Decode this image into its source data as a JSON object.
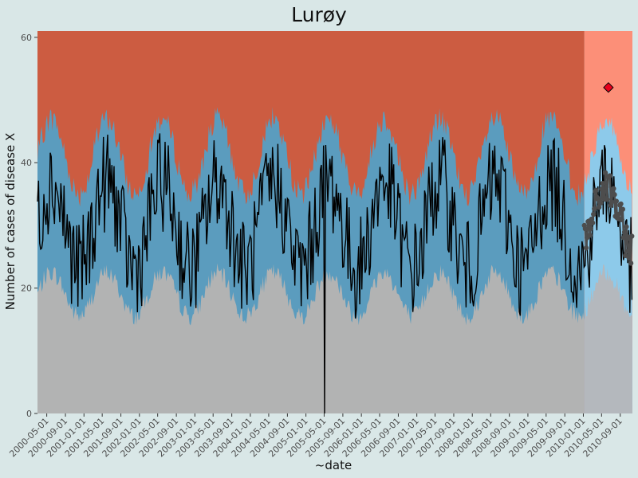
{
  "title": "Lurøy",
  "chart_data": {
    "type": "area",
    "title": "Lurøy",
    "xlabel": "~date",
    "ylabel": "Number of cases of disease X",
    "xlim": [
      "2000-03-01",
      "2010-11-20"
    ],
    "ylim": [
      0,
      61
    ],
    "yticks": [
      0,
      20,
      40,
      60
    ],
    "xticks": [
      "2000-05-01",
      "2000-09-01",
      "2001-01-01",
      "2001-05-01",
      "2001-09-01",
      "2002-01-01",
      "2002-05-01",
      "2002-09-01",
      "2003-01-01",
      "2003-05-01",
      "2003-09-01",
      "2004-01-01",
      "2004-05-01",
      "2004-09-01",
      "2005-01-01",
      "2005-05-01",
      "2005-09-01",
      "2006-01-01",
      "2006-05-01",
      "2006-09-01",
      "2007-01-01",
      "2007-05-01",
      "2007-09-01",
      "2008-01-01",
      "2008-05-01",
      "2008-09-01",
      "2009-01-01",
      "2009-05-01",
      "2009-09-01",
      "2010-01-01",
      "2010-05-01",
      "2010-09-01"
    ],
    "grid": false,
    "legend": "none",
    "regions": [
      {
        "x_start": "2000-03-01",
        "x_end": "2010-01-08"
      },
      {
        "x_start": "2010-01-08",
        "x_end": "2010-11-20"
      }
    ],
    "bands": {
      "lower_base_mean": 19,
      "lower_amplitude": 3.5,
      "upper_base_mean": 41,
      "upper_amplitude": 6,
      "season_peak_month": 5
    },
    "series": [
      {
        "name": "",
        "kind": "line",
        "mean": 30,
        "amplitude": 7
      },
      {
        "name": "",
        "kind": "points",
        "mean": 31,
        "amplitude": 5
      }
    ],
    "notable_points": [
      {
        "date": "2005-05-01",
        "value": 0
      },
      {
        "date": "2010-06-15",
        "value": 52,
        "marker": "diamond"
      }
    ],
    "colors": {
      "background": "#d9e7e7",
      "lower_band": "#b2b3b3",
      "middle_band": "#5b9cbe",
      "upper_band": "#cc5c41",
      "lower_band_future": "#b4b8bd",
      "middle_band_future": "#8dcaea",
      "upper_band_future": "#fc8f78",
      "line": "#000000",
      "points": "#4d4d4d",
      "marker": "#e8001c"
    }
  }
}
